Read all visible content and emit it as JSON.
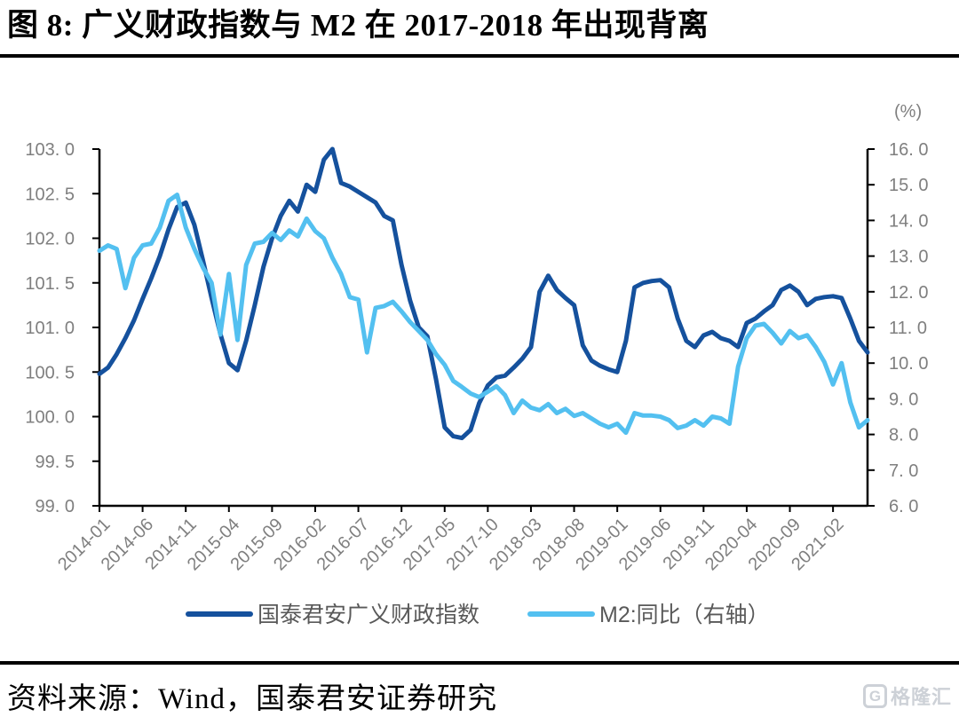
{
  "page": {
    "title": "图 8: 广义财政指数与 M2 在 2017-2018 年出现背离",
    "source_note": "资料来源：Wind，国泰君安证券研究",
    "watermark_text": "格隆汇",
    "watermark_icon": "G"
  },
  "chart_data": {
    "type": "line",
    "title": "广义财政指数与M2在2017-2018年出现背离",
    "x_start": "2014-01",
    "x_interval_months": 1,
    "x_tick_labels": [
      "2014-01",
      "2014-06",
      "2014-11",
      "2015-04",
      "2015-09",
      "2016-02",
      "2016-07",
      "2016-12",
      "2017-05",
      "2017-10",
      "2018-03",
      "2018-08",
      "2019-01",
      "2019-06",
      "2019-11",
      "2020-04",
      "2020-09",
      "2021-02"
    ],
    "left_axis": {
      "min": 99.0,
      "max": 103.0,
      "tick_labels": [
        "103. 0",
        "102. 5",
        "102. 0",
        "101. 5",
        "101. 0",
        "100. 5",
        "100. 0",
        "99. 5",
        "99. 0"
      ]
    },
    "right_axis": {
      "min": 6.0,
      "max": 16.0,
      "unit": "(%)",
      "tick_labels": [
        "16. 0",
        "15. 0",
        "14. 0",
        "13. 0",
        "12. 0",
        "11. 0",
        "10. 0",
        "9. 0",
        "8. 0",
        "7. 0",
        "6. 0"
      ]
    },
    "grid": false,
    "legend_position": "bottom",
    "tick_label_color": "#7f7f7f",
    "legend_text_color": "#595959",
    "axis_color": "#000000",
    "series": [
      {
        "name": "国泰君安广义财政指数",
        "axis": "left",
        "color": "#15519d",
        "values": [
          100.48,
          100.55,
          100.7,
          100.88,
          101.08,
          101.32,
          101.55,
          101.8,
          102.1,
          102.35,
          102.4,
          102.15,
          101.75,
          101.33,
          100.93,
          100.6,
          100.52,
          100.85,
          101.25,
          101.68,
          102.0,
          102.25,
          102.42,
          102.3,
          102.6,
          102.52,
          102.88,
          103.0,
          102.62,
          102.58,
          102.52,
          102.46,
          102.4,
          102.25,
          102.2,
          101.7,
          101.3,
          101.0,
          100.9,
          100.42,
          99.88,
          99.78,
          99.76,
          99.85,
          100.15,
          100.35,
          100.44,
          100.46,
          100.55,
          100.65,
          100.78,
          101.4,
          101.58,
          101.42,
          101.33,
          101.25,
          100.8,
          100.63,
          100.57,
          100.53,
          100.5,
          100.85,
          101.45,
          101.5,
          101.52,
          101.53,
          101.45,
          101.1,
          100.85,
          100.78,
          100.91,
          100.95,
          100.88,
          100.85,
          100.78,
          101.05,
          101.1,
          101.18,
          101.25,
          101.42,
          101.47,
          101.4,
          101.25,
          101.32,
          101.34,
          101.35,
          101.33,
          101.1,
          100.85,
          100.72
        ]
      },
      {
        "name": "M2:同比（右轴）",
        "axis": "right",
        "color": "#53c0f0",
        "values": [
          13.15,
          13.3,
          13.2,
          12.1,
          12.95,
          13.3,
          13.35,
          13.8,
          14.55,
          14.72,
          13.8,
          13.2,
          12.68,
          12.25,
          10.8,
          12.5,
          10.65,
          12.75,
          13.35,
          13.4,
          13.65,
          13.45,
          13.72,
          13.55,
          14.05,
          13.7,
          13.5,
          12.95,
          12.5,
          11.85,
          11.78,
          10.3,
          11.55,
          11.6,
          11.72,
          11.45,
          11.15,
          10.9,
          10.65,
          10.25,
          9.95,
          9.5,
          9.33,
          9.15,
          9.05,
          9.2,
          9.35,
          9.1,
          8.6,
          8.95,
          8.75,
          8.68,
          8.85,
          8.6,
          8.72,
          8.52,
          8.6,
          8.45,
          8.3,
          8.2,
          8.3,
          8.05,
          8.6,
          8.53,
          8.53,
          8.5,
          8.4,
          8.18,
          8.25,
          8.4,
          8.25,
          8.5,
          8.45,
          8.3,
          9.9,
          10.7,
          11.05,
          11.1,
          10.85,
          10.55,
          10.9,
          10.7,
          10.78,
          10.45,
          10.03,
          9.4,
          10.0,
          8.9,
          8.2,
          8.4
        ]
      }
    ]
  }
}
